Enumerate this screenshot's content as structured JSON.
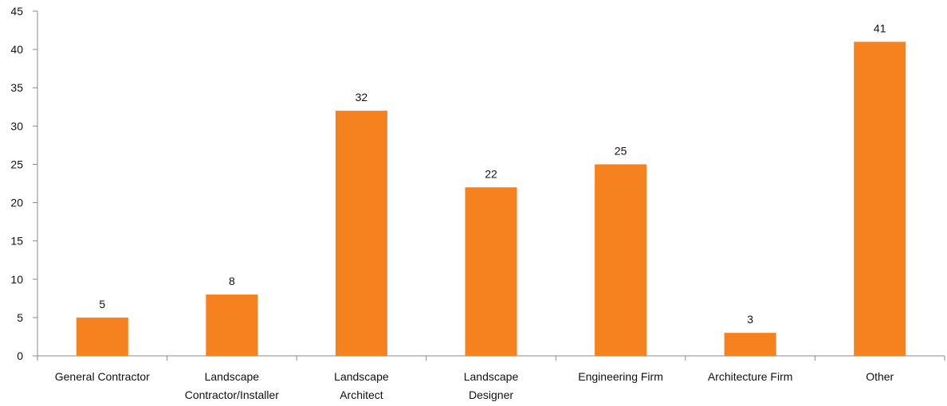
{
  "chart_data": {
    "type": "bar",
    "categories": [
      [
        "General Contractor"
      ],
      [
        "Landscape",
        "Contractor/Installer"
      ],
      [
        "Landscape",
        "Architect"
      ],
      [
        "Landscape",
        "Designer"
      ],
      [
        "Engineering Firm"
      ],
      [
        "Architecture Firm"
      ],
      [
        "Other"
      ]
    ],
    "values": [
      5,
      8,
      32,
      22,
      25,
      3,
      41
    ],
    "ylim": [
      0,
      45
    ],
    "yticks": [
      0,
      5,
      10,
      15,
      20,
      25,
      30,
      35,
      40,
      45
    ],
    "title": "",
    "xlabel": "",
    "ylabel": "",
    "grid": false,
    "legend": "none",
    "bar_color": "#F5821F",
    "axis_color": "#8A8A8A",
    "text_color": "#111111"
  }
}
